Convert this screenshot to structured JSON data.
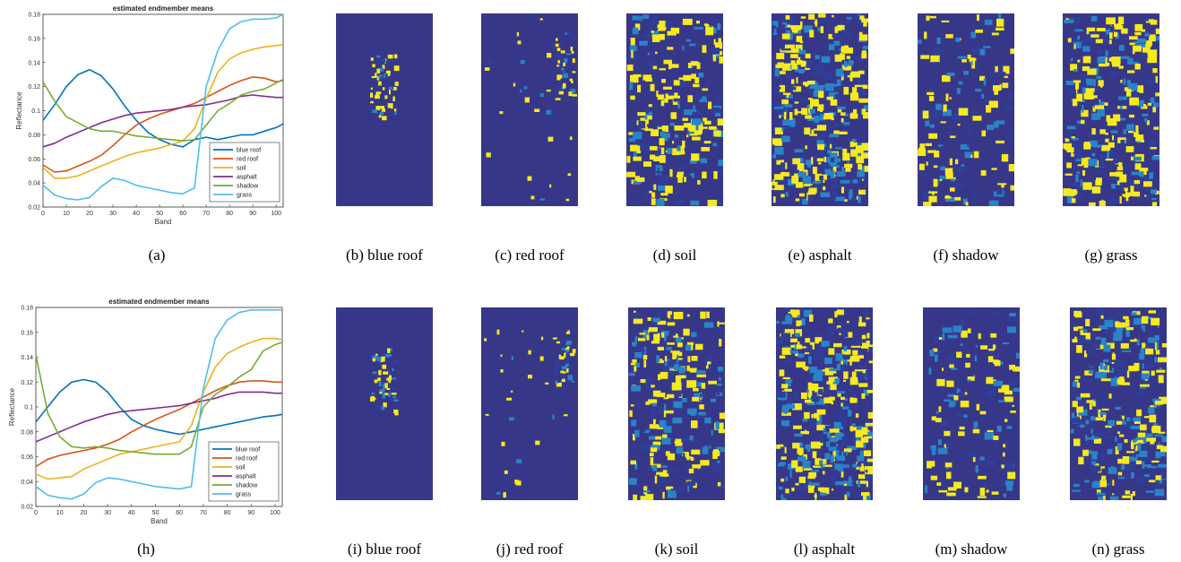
{
  "chart_data": [
    {
      "type": "line",
      "title": "estimated endmember means",
      "xlabel": "Band",
      "ylabel": "Reflectance",
      "xlim": [
        0,
        103
      ],
      "ylim": [
        0.02,
        0.18
      ],
      "x_ticks": [
        0,
        10,
        20,
        30,
        40,
        50,
        60,
        70,
        80,
        90,
        100
      ],
      "y_ticks": [
        0.02,
        0.04,
        0.06,
        0.08,
        0.1,
        0.12,
        0.14,
        0.16,
        0.18
      ],
      "y_tick_labels": [
        "0.02",
        "0.04",
        "0.06",
        "0.08",
        "0.1",
        "0.12",
        "0.14",
        "0.16",
        "0.18"
      ],
      "legend_position": "bottom-right",
      "x": [
        0,
        5,
        10,
        15,
        20,
        25,
        30,
        35,
        40,
        45,
        50,
        55,
        60,
        65,
        70,
        75,
        80,
        85,
        90,
        95,
        100,
        103
      ],
      "series": [
        {
          "name": "blue roof",
          "color": "#0072bd",
          "values": [
            0.092,
            0.105,
            0.12,
            0.13,
            0.134,
            0.129,
            0.118,
            0.104,
            0.092,
            0.082,
            0.076,
            0.072,
            0.07,
            0.076,
            0.078,
            0.076,
            0.078,
            0.08,
            0.08,
            0.083,
            0.086,
            0.089
          ]
        },
        {
          "name": "red roof",
          "color": "#d95319",
          "values": [
            0.055,
            0.049,
            0.05,
            0.054,
            0.058,
            0.063,
            0.071,
            0.08,
            0.088,
            0.093,
            0.097,
            0.1,
            0.103,
            0.106,
            0.111,
            0.116,
            0.121,
            0.125,
            0.128,
            0.127,
            0.124,
            0.125
          ]
        },
        {
          "name": "soil",
          "color": "#edb120",
          "values": [
            0.053,
            0.044,
            0.044,
            0.046,
            0.05,
            0.054,
            0.058,
            0.062,
            0.065,
            0.067,
            0.069,
            0.072,
            0.075,
            0.085,
            0.11,
            0.132,
            0.143,
            0.148,
            0.151,
            0.153,
            0.154,
            0.155
          ]
        },
        {
          "name": "asphalt",
          "color": "#7e2f8e",
          "values": [
            0.07,
            0.073,
            0.078,
            0.082,
            0.086,
            0.09,
            0.093,
            0.096,
            0.098,
            0.099,
            0.1,
            0.101,
            0.103,
            0.104,
            0.105,
            0.107,
            0.109,
            0.112,
            0.113,
            0.112,
            0.111,
            0.111
          ]
        },
        {
          "name": "shadow",
          "color": "#77ac30",
          "values": [
            0.124,
            0.108,
            0.095,
            0.09,
            0.085,
            0.083,
            0.083,
            0.081,
            0.079,
            0.078,
            0.077,
            0.076,
            0.075,
            0.076,
            0.088,
            0.1,
            0.106,
            0.113,
            0.116,
            0.118,
            0.123,
            0.126
          ]
        },
        {
          "name": "grass",
          "color": "#4dbeee",
          "values": [
            0.038,
            0.03,
            0.027,
            0.026,
            0.028,
            0.037,
            0.044,
            0.042,
            0.038,
            0.036,
            0.034,
            0.032,
            0.031,
            0.036,
            0.12,
            0.15,
            0.168,
            0.174,
            0.176,
            0.176,
            0.177,
            0.18
          ]
        }
      ]
    },
    {
      "type": "line",
      "title": "estimated endmember means",
      "xlabel": "Band",
      "ylabel": "Reflectance",
      "xlim": [
        0,
        103
      ],
      "ylim": [
        0.02,
        0.18
      ],
      "x_ticks": [
        0,
        10,
        20,
        30,
        40,
        50,
        60,
        70,
        80,
        90,
        100
      ],
      "y_ticks": [
        0.02,
        0.04,
        0.06,
        0.08,
        0.1,
        0.12,
        0.14,
        0.16,
        0.18
      ],
      "y_tick_labels": [
        "0.02",
        "0.04",
        "0.06",
        "0.08",
        "0.1",
        "0.12",
        "0.14",
        "0.16",
        "0.18"
      ],
      "legend_position": "bottom-right",
      "x": [
        0,
        5,
        10,
        15,
        20,
        25,
        30,
        35,
        40,
        45,
        50,
        55,
        60,
        65,
        70,
        75,
        80,
        85,
        90,
        95,
        100,
        103
      ],
      "series": [
        {
          "name": "blue roof",
          "color": "#0072bd",
          "values": [
            0.088,
            0.1,
            0.112,
            0.12,
            0.122,
            0.12,
            0.112,
            0.1,
            0.09,
            0.085,
            0.082,
            0.08,
            0.078,
            0.08,
            0.082,
            0.084,
            0.086,
            0.088,
            0.09,
            0.092,
            0.093,
            0.094
          ]
        },
        {
          "name": "red roof",
          "color": "#d95319",
          "values": [
            0.052,
            0.058,
            0.061,
            0.063,
            0.065,
            0.067,
            0.07,
            0.074,
            0.08,
            0.085,
            0.09,
            0.094,
            0.098,
            0.103,
            0.108,
            0.113,
            0.117,
            0.12,
            0.121,
            0.121,
            0.12,
            0.12
          ]
        },
        {
          "name": "soil",
          "color": "#edb120",
          "values": [
            0.046,
            0.042,
            0.043,
            0.044,
            0.05,
            0.054,
            0.058,
            0.062,
            0.064,
            0.066,
            0.068,
            0.07,
            0.072,
            0.085,
            0.112,
            0.132,
            0.143,
            0.148,
            0.152,
            0.155,
            0.155,
            0.154
          ]
        },
        {
          "name": "asphalt",
          "color": "#7e2f8e",
          "values": [
            0.072,
            0.076,
            0.08,
            0.084,
            0.088,
            0.091,
            0.094,
            0.096,
            0.097,
            0.098,
            0.099,
            0.1,
            0.101,
            0.103,
            0.105,
            0.107,
            0.11,
            0.112,
            0.112,
            0.112,
            0.111,
            0.111
          ]
        },
        {
          "name": "shadow",
          "color": "#77ac30",
          "values": [
            0.142,
            0.095,
            0.076,
            0.068,
            0.067,
            0.068,
            0.067,
            0.065,
            0.064,
            0.063,
            0.062,
            0.062,
            0.062,
            0.068,
            0.1,
            0.11,
            0.116,
            0.124,
            0.13,
            0.145,
            0.15,
            0.152
          ]
        },
        {
          "name": "grass",
          "color": "#4dbeee",
          "values": [
            0.036,
            0.029,
            0.027,
            0.026,
            0.03,
            0.039,
            0.043,
            0.042,
            0.04,
            0.038,
            0.036,
            0.035,
            0.034,
            0.036,
            0.115,
            0.155,
            0.17,
            0.176,
            0.178,
            0.178,
            0.178,
            0.178
          ]
        }
      ]
    }
  ],
  "captions": {
    "a": "(a)",
    "b": "(b)  blue roof",
    "c": "(c)  red roof",
    "d": "(d)  soil",
    "e": "(e)  asphalt",
    "f": "(f)  shadow",
    "g": "(g)  grass",
    "h": "(h)",
    "i": "(i)  blue roof",
    "j": "(j)  red roof",
    "k": "(k)  soil",
    "l": "(l)  asphalt",
    "m": "(m)  shadow",
    "n": "(n)  grass"
  },
  "colors": {
    "map_background": "#37378a",
    "map_low": "#2f3f99",
    "map_mid": "#2a83c7",
    "map_high": "#f5ea1d"
  }
}
